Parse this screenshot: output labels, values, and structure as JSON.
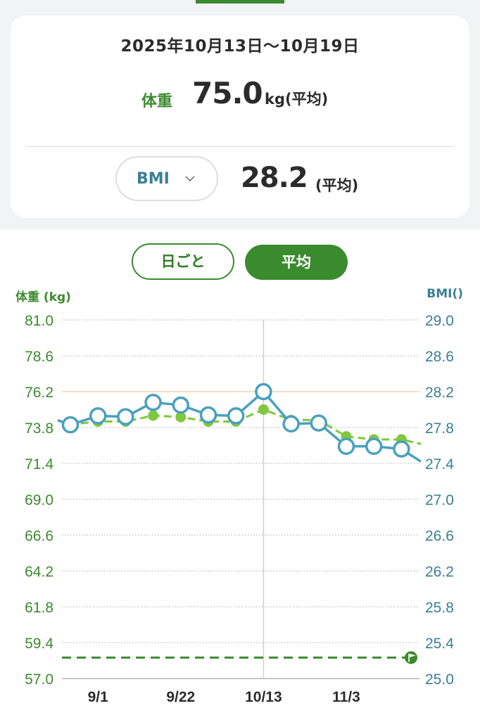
{
  "summary": {
    "date_range": "2025年10月13日〜10月19日",
    "weight_label": "体重",
    "weight_value": "75.0",
    "weight_unit": "kg(平均)",
    "bmi_selector_label": "BMI",
    "bmi_value": "28.2",
    "bmi_avg_label": "(平均)"
  },
  "toggle": {
    "daily_label": "日ごと",
    "average_label": "平均",
    "selected": "average"
  },
  "colors": {
    "accent": "#3a8a2e",
    "weight": "#7ec83d",
    "bmi": "#4aa0bf",
    "target": "#3a8a2e",
    "cursor": "#f2c9a0"
  },
  "chart_data": {
    "type": "line",
    "left_axis_title": "体重 (kg)",
    "right_axis_title": "BMI()",
    "left_ticks": [
      "81.0",
      "78.6",
      "76.2",
      "73.8",
      "71.4",
      "69.0",
      "66.6",
      "64.2",
      "61.8",
      "59.4",
      "57.0"
    ],
    "right_ticks": [
      "29.0",
      "28.6",
      "28.2",
      "27.8",
      "27.4",
      "27.0",
      "26.6",
      "26.2",
      "25.8",
      "25.4",
      "25.0"
    ],
    "left_range": [
      57.0,
      81.0
    ],
    "right_range": [
      25.0,
      29.0
    ],
    "x_labels": [
      "9/1",
      "9/22",
      "10/13",
      "11/3"
    ],
    "x_label_index": [
      1,
      4,
      7,
      10
    ],
    "selected_index": 7,
    "series": [
      {
        "axis": "left",
        "style": "dashed-dots",
        "values": [
          74.0,
          74.2,
          74.2,
          74.6,
          74.5,
          74.2,
          74.2,
          75.0,
          74.3,
          74.3,
          73.2,
          73.0,
          73.0
        ],
        "extend_before": 74.3,
        "extend_after": 72.7
      },
      {
        "axis": "right",
        "style": "solid-circles",
        "values": [
          27.83,
          27.93,
          27.92,
          28.08,
          28.05,
          27.94,
          27.93,
          28.2,
          27.84,
          27.85,
          27.59,
          27.59,
          27.56
        ],
        "extend_before": 27.88,
        "extend_after": 27.42
      }
    ],
    "target_line": {
      "axis": "left",
      "value": 58.4
    }
  }
}
